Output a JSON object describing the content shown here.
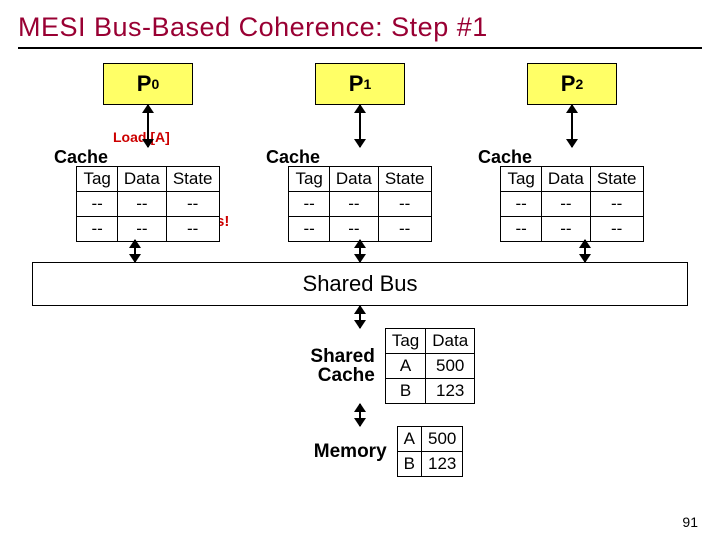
{
  "title": "MESI Bus-Based Coherence: Step #1",
  "page_number": "91",
  "load_label": "Load [A]",
  "miss_label": "Miss!",
  "bus_label": "Shared Bus",
  "shared_cache_label_l1": "Shared",
  "shared_cache_label_l2": "Cache",
  "memory_label": "Memory",
  "cache_label": "Cache",
  "colors": {
    "title": "#990033",
    "proc_bg": "#ffff66",
    "annot": "#cc0000",
    "border": "#000000",
    "bg": "#ffffff"
  },
  "proc": {
    "p0": {
      "name": "P",
      "idx": "0"
    },
    "p1": {
      "name": "P",
      "idx": "1"
    },
    "p2": {
      "name": "P",
      "idx": "2"
    }
  },
  "cache_headers": {
    "tag": "Tag",
    "data": "Data",
    "state": "State"
  },
  "caches": {
    "p0": {
      "r0": {
        "tag": "--",
        "data": "--",
        "state": "--"
      },
      "r1": {
        "tag": "--",
        "data": "--",
        "state": "--"
      }
    },
    "p1": {
      "r0": {
        "tag": "--",
        "data": "--",
        "state": "--"
      },
      "r1": {
        "tag": "--",
        "data": "--",
        "state": "--"
      }
    },
    "p2": {
      "r0": {
        "tag": "--",
        "data": "--",
        "state": "--"
      },
      "r1": {
        "tag": "--",
        "data": "--",
        "state": "--"
      }
    }
  },
  "shared_cache": {
    "h": {
      "tag": "Tag",
      "data": "Data"
    },
    "r0": {
      "tag": "A",
      "data": "500"
    },
    "r1": {
      "tag": "B",
      "data": "123"
    }
  },
  "memory": {
    "r0": {
      "tag": "A",
      "data": "500"
    },
    "r1": {
      "tag": "B",
      "data": "123"
    }
  }
}
